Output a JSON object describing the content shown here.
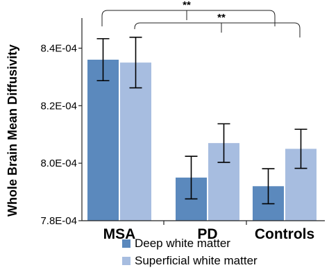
{
  "chart_data": {
    "type": "bar",
    "title": "",
    "xlabel": "",
    "ylabel": "Whole Brain Mean Diffusivity",
    "categories": [
      "MSA",
      "PD",
      "Controls"
    ],
    "ylim": [
      0.00078,
      0.00085
    ],
    "yticks": [
      0.00078,
      0.0008,
      0.00082,
      0.00084
    ],
    "ytick_labels": [
      "7.8E-04",
      "8.0E-04",
      "8.2E-04",
      "8.4E-04"
    ],
    "grid": false,
    "legend_position": "bottom",
    "series": [
      {
        "name": "Deep white matter",
        "color": "#5b89bd",
        "values": [
          0.000836,
          0.000795,
          0.000792
        ],
        "err": [
          7.3e-06,
          7.4e-06,
          6.1e-06
        ]
      },
      {
        "name": "Superficial white matter",
        "color": "#a7bde0",
        "values": [
          0.000835,
          0.000807,
          0.000805
        ],
        "err": [
          8.8e-06,
          6.7e-06,
          6.8e-06
        ]
      }
    ],
    "annotations": [
      {
        "text": "**",
        "from": "MSA",
        "to": "Controls"
      },
      {
        "text": "**",
        "from": "MSA",
        "to": "Controls"
      }
    ]
  }
}
